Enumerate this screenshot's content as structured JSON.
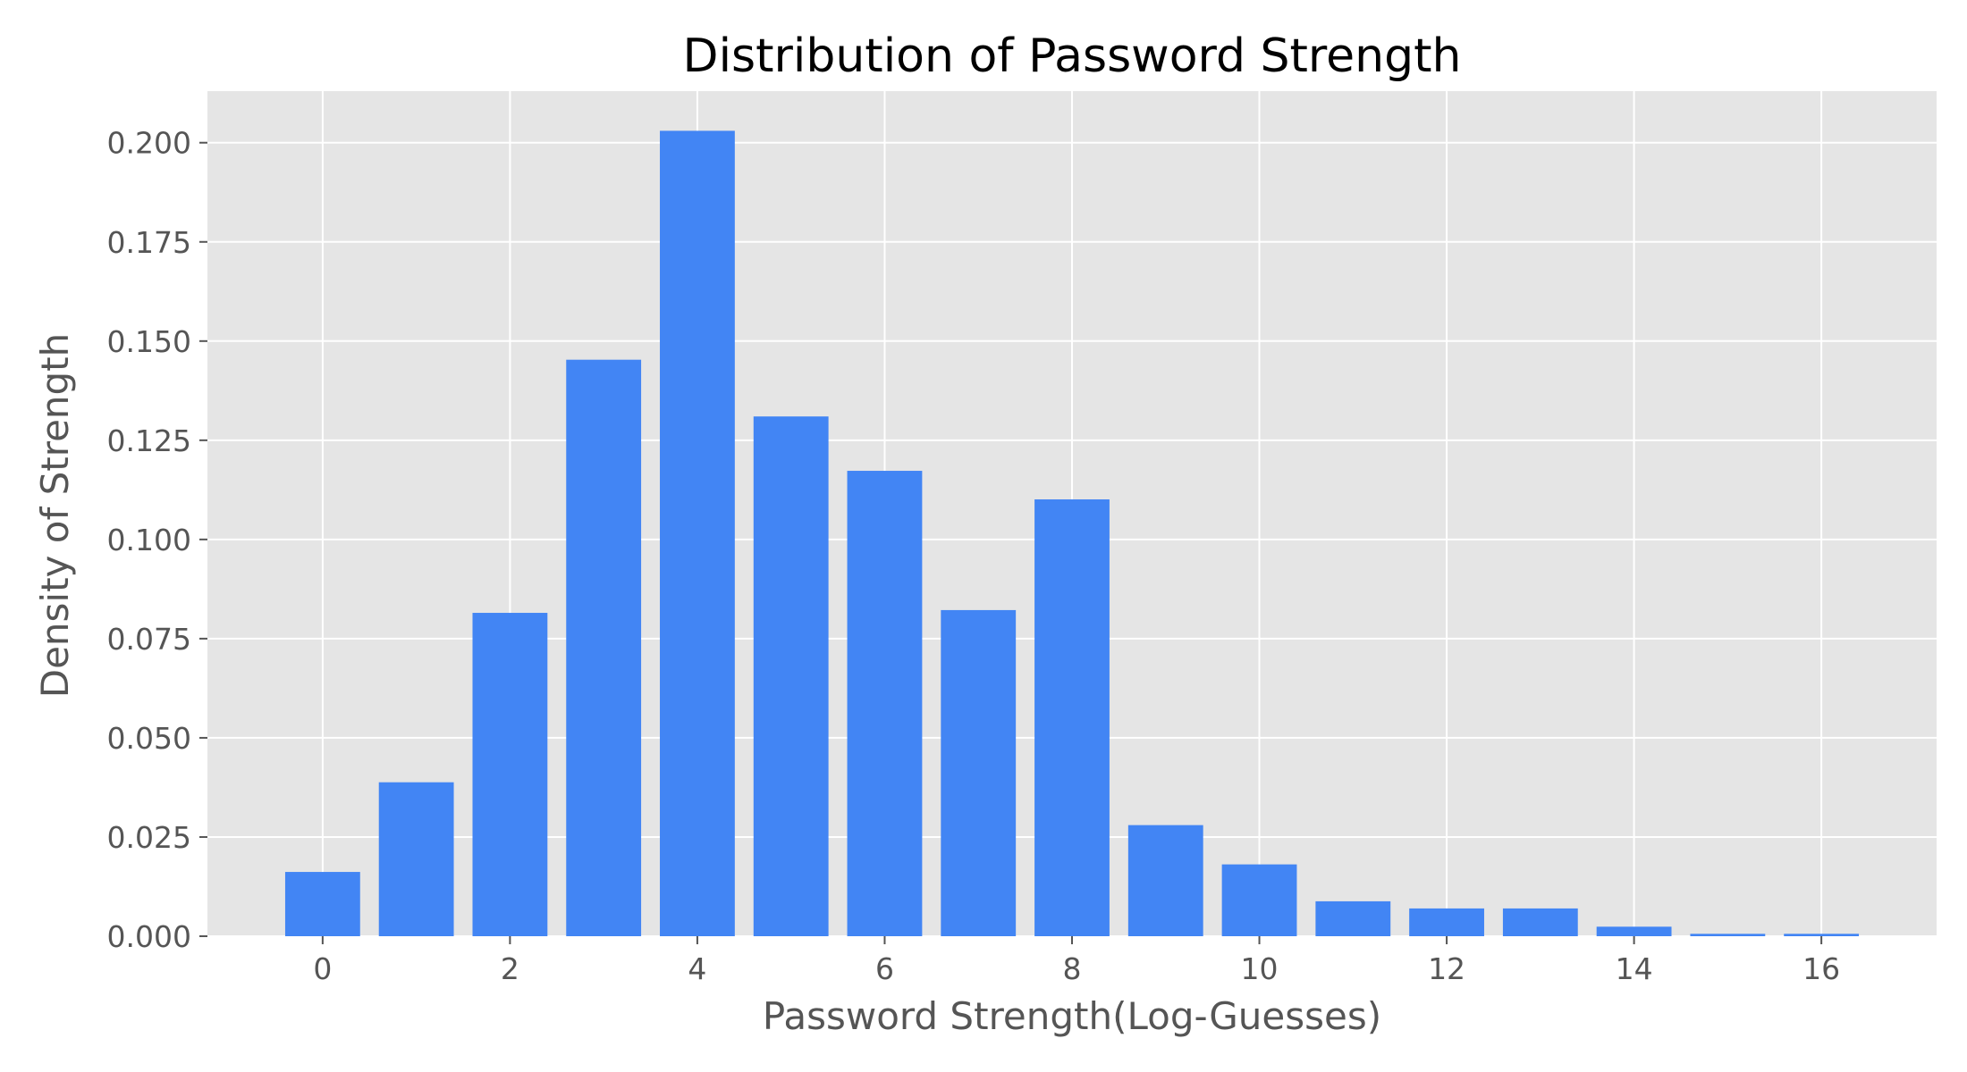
{
  "chart_data": {
    "type": "bar",
    "title": "Distribution of Password Strength",
    "xlabel": "Password Strength(Log-Guesses)",
    "ylabel": "Density of Strength",
    "x": [
      0,
      1,
      2,
      3,
      4,
      5,
      6,
      7,
      8,
      9,
      10,
      11,
      12,
      13,
      14,
      15,
      16
    ],
    "values": [
      0.0162,
      0.0388,
      0.0815,
      0.1453,
      0.203,
      0.131,
      0.1173,
      0.0822,
      0.1101,
      0.028,
      0.0181,
      0.0088,
      0.007,
      0.007,
      0.0024,
      0.0006,
      0.0006
    ],
    "xlim": [
      -1.23,
      17.23
    ],
    "ylim": [
      0,
      0.213
    ],
    "xticks": [
      0,
      2,
      4,
      6,
      8,
      10,
      12,
      14,
      16
    ],
    "xtick_labels": [
      "0",
      "2",
      "4",
      "6",
      "8",
      "10",
      "12",
      "14",
      "16"
    ],
    "yticks": [
      0,
      0.025,
      0.05,
      0.075,
      0.1,
      0.125,
      0.15,
      0.175,
      0.2
    ],
    "ytick_labels": [
      "0.000",
      "0.025",
      "0.050",
      "0.075",
      "0.100",
      "0.125",
      "0.150",
      "0.175",
      "0.200"
    ],
    "grid": true,
    "colors": {
      "bar": "#4285f4",
      "plot_background": "#e5e5e5",
      "grid": "#ffffff",
      "text": "#555555",
      "title": "#000000"
    }
  }
}
